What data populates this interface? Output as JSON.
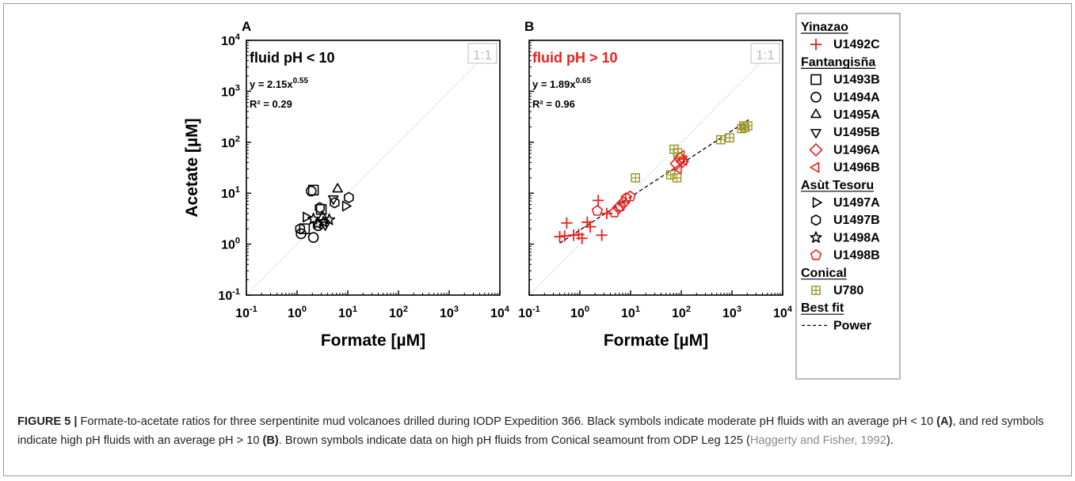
{
  "chart_data": [
    {
      "type": "scatter",
      "panel_label": "A",
      "condition_label": "fluid pH < 10",
      "condition_color": "#000000",
      "ratio_label": "1:1",
      "equation": {
        "prefix": "y = 2.15x",
        "exponent": "0.55"
      },
      "r2": "R² = 0.29",
      "xlabel": "Formate [µM]",
      "ylabel": "Acetate [µM]",
      "xscale": "log",
      "yscale": "log",
      "xlim": [
        0.1,
        10000
      ],
      "ylim": [
        0.1,
        10000
      ],
      "ticks": [
        {
          "base": "10",
          "exp": "-1"
        },
        {
          "base": "10",
          "exp": "0"
        },
        {
          "base": "10",
          "exp": "1"
        },
        {
          "base": "10",
          "exp": "2"
        },
        {
          "base": "10",
          "exp": "3"
        },
        {
          "base": "10",
          "exp": "4"
        }
      ],
      "series": [
        {
          "key": "U1493B",
          "marker": "square",
          "color": "#000000",
          "points": [
            [
              2.1,
              11.5
            ],
            [
              1.4,
              2.0
            ],
            [
              3.0,
              4.8
            ]
          ]
        },
        {
          "key": "U1494A",
          "marker": "circle",
          "color": "#000000",
          "points": [
            [
              1.9,
              11.0
            ],
            [
              1.2,
              1.6
            ],
            [
              2.1,
              1.35
            ],
            [
              2.6,
              2.3
            ]
          ]
        },
        {
          "key": "U1495A",
          "marker": "triangle-up",
          "color": "#000000",
          "points": [
            [
              6.3,
              12.0
            ],
            [
              3.2,
              3.4
            ]
          ]
        },
        {
          "key": "U1495B",
          "marker": "triangle-down",
          "color": "#000000",
          "points": [
            [
              5.2,
              7.8
            ],
            [
              3.6,
              2.4
            ]
          ]
        },
        {
          "key": "U1497A",
          "marker": "triangle-right",
          "color": "#000000",
          "points": [
            [
              1.5,
              3.4
            ],
            [
              9.0,
              5.6
            ]
          ]
        },
        {
          "key": "U1497B",
          "marker": "hexagon",
          "color": "#000000",
          "points": [
            [
              10.5,
              8.2
            ],
            [
              1.15,
              2.0
            ],
            [
              2.8,
              5.2
            ],
            [
              5.5,
              6.5
            ]
          ]
        },
        {
          "key": "U1498A",
          "marker": "star",
          "color": "#000000",
          "points": [
            [
              2.1,
              3.1
            ],
            [
              2.5,
              2.5
            ],
            [
              3.3,
              2.7
            ],
            [
              4.3,
              3.0
            ]
          ]
        }
      ]
    },
    {
      "type": "scatter",
      "panel_label": "B",
      "condition_label": "fluid pH > 10",
      "condition_color": "#e8221f",
      "ratio_label": "1:1",
      "equation": {
        "prefix": "y = 1.89x",
        "exponent": "0.65"
      },
      "r2": "R² = 0.96",
      "xlabel": "Formate [µM]",
      "ylabel": "",
      "xscale": "log",
      "yscale": "log",
      "xlim": [
        0.1,
        10000
      ],
      "ylim": [
        0.1,
        10000
      ],
      "ticks": [
        {
          "base": "10",
          "exp": "-1"
        },
        {
          "base": "10",
          "exp": "0"
        },
        {
          "base": "10",
          "exp": "1"
        },
        {
          "base": "10",
          "exp": "2"
        },
        {
          "base": "10",
          "exp": "3"
        },
        {
          "base": "10",
          "exp": "4"
        }
      ],
      "fit": {
        "a": 1.89,
        "b": 0.65,
        "x_range": [
          0.4,
          2300
        ],
        "style": "dashed",
        "color": "#000000"
      },
      "series": [
        {
          "key": "U1492C",
          "marker": "plus",
          "color": "#e8221f",
          "points": [
            [
              0.4,
              1.4
            ],
            [
              0.55,
              2.6
            ],
            [
              0.5,
              1.45
            ],
            [
              0.75,
              1.5
            ],
            [
              0.95,
              1.55
            ],
            [
              1.1,
              1.3
            ],
            [
              1.4,
              2.7
            ],
            [
              1.6,
              2.2
            ],
            [
              2.3,
              7.2
            ],
            [
              2.7,
              1.5
            ],
            [
              3.4,
              4.0
            ]
          ]
        },
        {
          "key": "U1496A",
          "marker": "diamond",
          "color": "#e8221f",
          "points": [
            [
              5.8,
              5.2
            ],
            [
              7.2,
              6.5
            ],
            [
              80,
              38
            ],
            [
              95,
              48
            ],
            [
              105,
              42
            ]
          ]
        },
        {
          "key": "U1496B",
          "marker": "triangle-left",
          "color": "#e8221f",
          "points": [
            [
              100,
              55
            ],
            [
              112,
              44
            ],
            [
              88,
              30
            ]
          ]
        },
        {
          "key": "U1498B",
          "marker": "pentagon",
          "color": "#e8221f",
          "points": [
            [
              2.2,
              4.5
            ],
            [
              4.8,
              4.2
            ],
            [
              6.3,
              5.5
            ],
            [
              8.2,
              8.0
            ],
            [
              9.8,
              8.6
            ]
          ]
        },
        {
          "key": "U780",
          "marker": "box-plus",
          "color": "#9a9223",
          "points": [
            [
              12.5,
              20.0
            ],
            [
              62,
              23
            ],
            [
              72,
              73
            ],
            [
              82,
              20
            ],
            [
              85,
              62
            ],
            [
              600,
              112
            ],
            [
              900,
              122
            ],
            [
              1550,
              185
            ],
            [
              1700,
              210
            ],
            [
              2050,
              210
            ],
            [
              1800,
              193
            ]
          ]
        }
      ]
    }
  ],
  "legend": {
    "sections": [
      {
        "title": "Yinazao",
        "entries": [
          {
            "label": "U1492C",
            "marker": "plus",
            "color": "#e8221f"
          }
        ]
      },
      {
        "title": "Fantangisña",
        "entries": [
          {
            "label": "U1493B",
            "marker": "square",
            "color": "#000000"
          },
          {
            "label": "U1494A",
            "marker": "circle",
            "color": "#000000"
          },
          {
            "label": "U1495A",
            "marker": "triangle-up",
            "color": "#000000"
          },
          {
            "label": "U1495B",
            "marker": "triangle-down",
            "color": "#000000"
          },
          {
            "label": "U1496A",
            "marker": "diamond",
            "color": "#e8221f"
          },
          {
            "label": "U1496B",
            "marker": "triangle-left",
            "color": "#e8221f"
          }
        ]
      },
      {
        "title": "Asùt  Tesoru",
        "entries": [
          {
            "label": "U1497A",
            "marker": "triangle-right",
            "color": "#000000"
          },
          {
            "label": "U1497B",
            "marker": "hexagon",
            "color": "#000000"
          },
          {
            "label": "U1498A",
            "marker": "star",
            "color": "#000000"
          },
          {
            "label": "U1498B",
            "marker": "pentagon",
            "color": "#e8221f"
          }
        ]
      },
      {
        "title": "Conical",
        "entries": [
          {
            "label": "U780",
            "marker": "box-plus",
            "color": "#9a9223"
          }
        ]
      },
      {
        "title": "Best fit",
        "entries": [
          {
            "label": "Power",
            "marker": "dashed-line",
            "color": "#000000"
          }
        ]
      }
    ]
  },
  "caption": {
    "label": "FIGURE 5 |",
    "p1": " Formate-to-acetate ratios for three serpentinite mud volcanoes drilled during IODP Expedition 366. Black symbols indicate moderate pH fluids with an average pH < 10 ",
    "r1": "(A)",
    "p2": ", and red symbols indicate high pH fluids with an average pH > 10 ",
    "r2": "(B)",
    "p3": ". Brown symbols indicate data on high pH fluids from Conical seamount from ODP Leg 125 (",
    "citation": "Haggerty and Fisher, 1992",
    "p4": ")."
  }
}
